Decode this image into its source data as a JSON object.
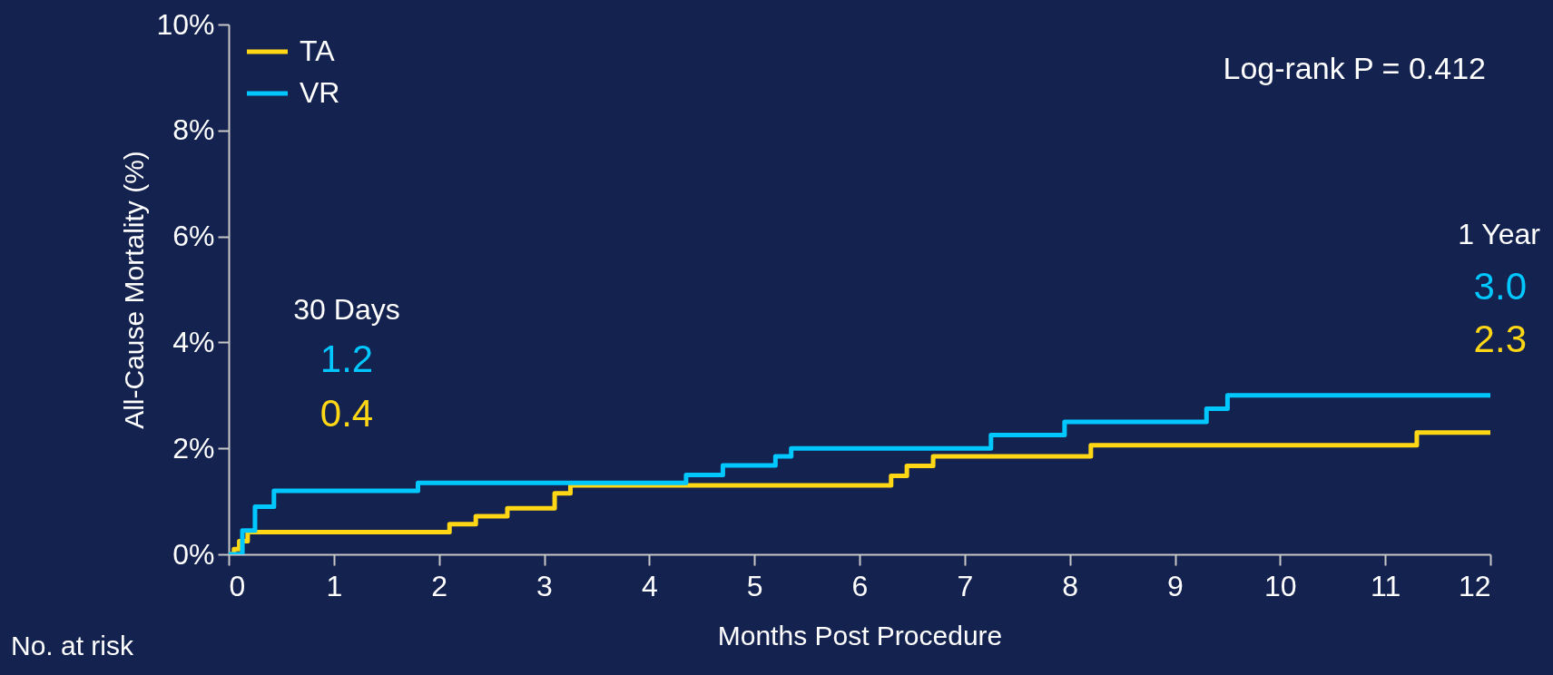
{
  "chart_data": {
    "type": "step",
    "xlabel": "Months Post Procedure",
    "ylabel": "All-Cause Mortality (%)",
    "series": [
      {
        "name": "TA",
        "color": "#ffd714",
        "x": [
          0,
          0.05,
          0.1,
          0.18,
          2.1,
          2.35,
          2.65,
          3.1,
          3.25,
          6.3,
          6.45,
          6.7,
          8.2,
          11.3,
          12
        ],
        "values": [
          0,
          0.1,
          0.25,
          0.42,
          0.57,
          0.72,
          0.87,
          1.15,
          1.3,
          1.48,
          1.67,
          1.85,
          2.06,
          2.3,
          2.3
        ]
      },
      {
        "name": "VR",
        "color": "#00c8ff",
        "x": [
          0,
          0.08,
          0.13,
          0.25,
          0.43,
          1.8,
          4.35,
          4.7,
          5.2,
          5.35,
          7.25,
          7.95,
          9.3,
          9.5,
          12
        ],
        "values": [
          0,
          0.0,
          0.45,
          0.9,
          1.2,
          1.35,
          1.5,
          1.68,
          1.85,
          2.0,
          2.25,
          2.5,
          2.75,
          3.0,
          3.0
        ]
      }
    ],
    "xlim": [
      0,
      12
    ],
    "xticks": [
      0,
      1,
      2,
      3,
      4,
      5,
      6,
      7,
      8,
      9,
      10,
      11,
      12
    ],
    "ylim": [
      0,
      10
    ],
    "yticks": [
      {
        "value": 0,
        "label": "0%"
      },
      {
        "value": 2,
        "label": "2%"
      },
      {
        "value": 4,
        "label": "4%"
      },
      {
        "value": 6,
        "label": "6%"
      },
      {
        "value": 8,
        "label": "8%"
      },
      {
        "value": 10,
        "label": "10%"
      }
    ],
    "grid": false,
    "legend": "top left",
    "line_style": "solid",
    "marker": "none",
    "annotations": [
      "Log-rank P = 0.412",
      "30 Days",
      "1.2",
      "0.4",
      "1 Year",
      "3.0",
      "2.3",
      "No. at risk"
    ]
  }
}
